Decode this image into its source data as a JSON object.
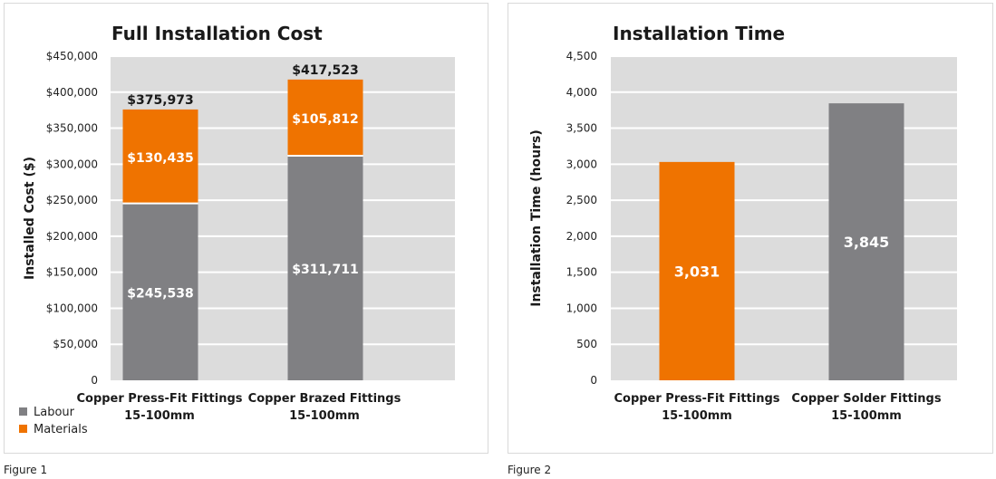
{
  "figure_captions": [
    "Figure 1",
    "Figure 2"
  ],
  "chart_data": [
    {
      "type": "bar",
      "stacked": true,
      "title": "Full Installation Cost",
      "ylabel": "Installed Cost ($)",
      "xlabel": "",
      "ylim": [
        0,
        450000
      ],
      "yticks": [
        0,
        50000,
        100000,
        150000,
        200000,
        250000,
        300000,
        350000,
        400000,
        450000
      ],
      "ytick_labels": [
        "0",
        "$50,000",
        "$100,000",
        "$150,000",
        "$200,000",
        "$250,000",
        "$300,000",
        "$350,000",
        "$400,000",
        "$450,000"
      ],
      "categories": [
        [
          "Copper Press-Fit Fittings",
          "15-100mm"
        ],
        [
          "Copper Brazed Fittings",
          "15-100mm"
        ]
      ],
      "series": [
        {
          "name": "Labour",
          "color": "#808083",
          "values": [
            245538,
            311711
          ],
          "value_labels": [
            "$245,538",
            "$311,711"
          ]
        },
        {
          "name": "Materials",
          "color": "#ef7300",
          "values": [
            130435,
            105812
          ],
          "value_labels": [
            "$130,435",
            "$105,812"
          ]
        }
      ],
      "totals": [
        375973,
        417523
      ],
      "total_labels": [
        "$375,973",
        "$417,523"
      ],
      "legend_position": "bottom-left",
      "grid": true
    },
    {
      "type": "bar",
      "title": "Installation Time",
      "ylabel": "Installation Time (hours)",
      "xlabel": "",
      "ylim": [
        0,
        4500
      ],
      "yticks": [
        0,
        500,
        1000,
        1500,
        2000,
        2500,
        3000,
        3500,
        4000,
        4500
      ],
      "ytick_labels": [
        "0",
        "500",
        "1,000",
        "1,500",
        "2,000",
        "2,500",
        "3,000",
        "3,500",
        "4,000",
        "4,500"
      ],
      "categories": [
        [
          "Copper Press-Fit Fittings",
          "15-100mm"
        ],
        [
          "Copper Solder Fittings",
          "15-100mm"
        ]
      ],
      "values": [
        3031,
        3845
      ],
      "value_labels": [
        "3,031",
        "3,845"
      ],
      "colors": [
        "#ef7300",
        "#808083"
      ],
      "grid": true
    }
  ]
}
